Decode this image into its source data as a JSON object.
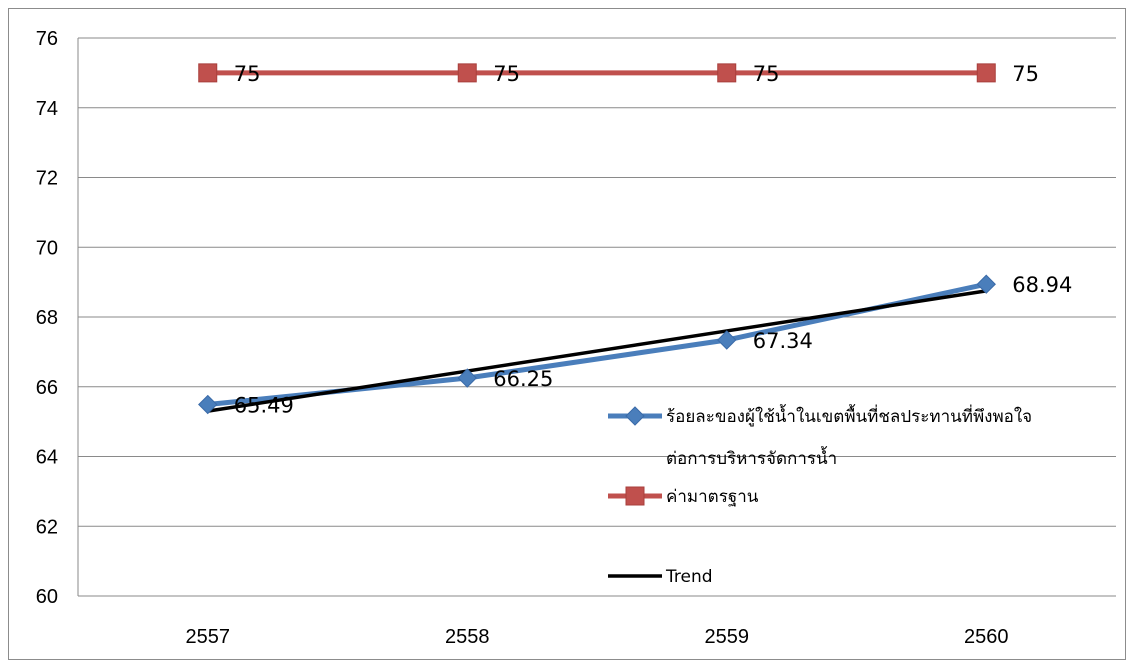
{
  "chart_data": {
    "type": "line",
    "categories": [
      "2557",
      "2558",
      "2559",
      "2560"
    ],
    "ylim": [
      60,
      76
    ],
    "yticks": [
      "60",
      "62",
      "64",
      "66",
      "68",
      "70",
      "72",
      "74",
      "76"
    ],
    "grid": "horizontal",
    "legend_position": "right",
    "series": [
      {
        "name": "ร้อยละของผู้ใช้น้ำในเขตพื้นที่ชลประทานที่พึงพอใจต่อการบริหารจัดการน้ำ",
        "legend_lines": [
          "ร้อยละของผู้ใช้น้ำในเขตพื้นที่ชลประทานที่พึงพอใจ",
          "ต่อการบริหารจัดการน้ำ"
        ],
        "values": [
          65.49,
          66.25,
          67.34,
          68.94
        ],
        "labels": [
          "65.49",
          "66.25",
          "67.34",
          "68.94"
        ],
        "color": "#4a7ebb",
        "marker": "diamond"
      },
      {
        "name": "ค่ามาตรฐาน",
        "legend_lines": [
          "ค่ามาตรฐาน"
        ],
        "values": [
          75,
          75,
          75,
          75
        ],
        "labels": [
          "75",
          "75",
          "75",
          "75"
        ],
        "color": "#c0504d",
        "marker": "square"
      },
      {
        "name": "Trend",
        "legend_lines": [
          "Trend"
        ],
        "values": [
          65.3,
          66.45,
          67.6,
          68.75
        ],
        "color": "#000000",
        "marker": "none"
      }
    ]
  }
}
